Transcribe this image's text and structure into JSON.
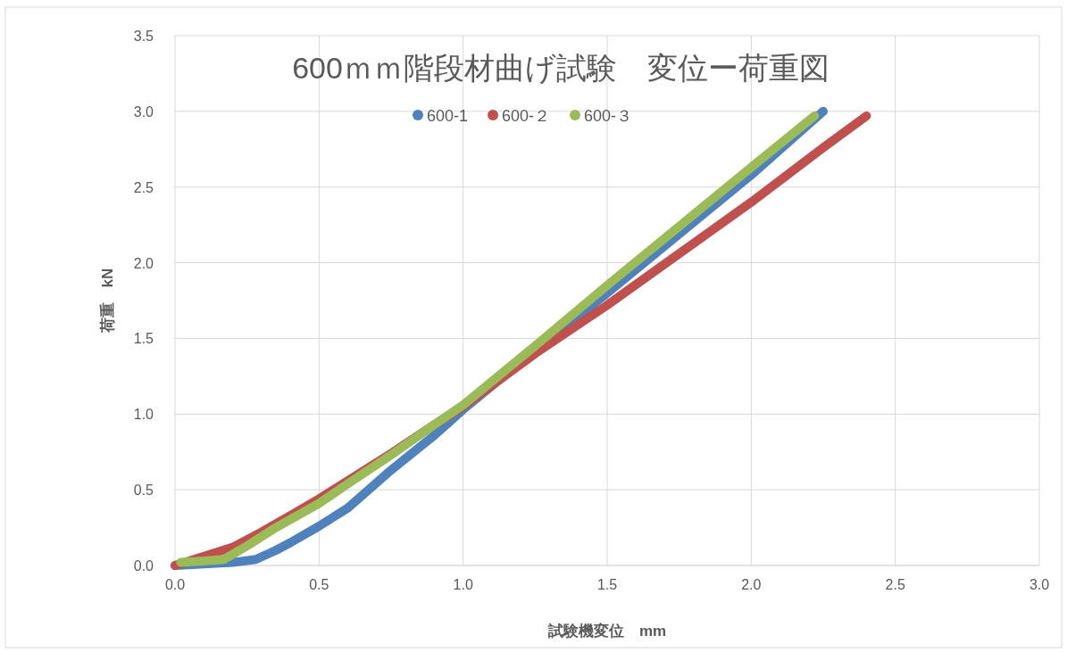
{
  "chart_data": {
    "type": "line",
    "title": "600ｍｍ階段材曲げ試験　変位ー荷重図",
    "xlabel": "試験機変位　mm",
    "ylabel": "荷重　kN",
    "xlim": [
      0,
      3
    ],
    "xticks": [
      {
        "value": 0,
        "label": "0.0"
      },
      {
        "value": 0.5,
        "label": "0.5"
      },
      {
        "value": 1,
        "label": "1.0"
      },
      {
        "value": 1.5,
        "label": "1.5"
      },
      {
        "value": 2,
        "label": "2.0"
      },
      {
        "value": 2.5,
        "label": "2.5"
      },
      {
        "value": 3,
        "label": "3.0"
      }
    ],
    "ylim": [
      0,
      3.5
    ],
    "yticks": [
      {
        "value": 0,
        "label": "0.0"
      },
      {
        "value": 0.5,
        "label": "0.5"
      },
      {
        "value": 1,
        "label": "1.0"
      },
      {
        "value": 1.5,
        "label": "1.5"
      },
      {
        "value": 2,
        "label": "2.0"
      },
      {
        "value": 2.5,
        "label": "2.5"
      },
      {
        "value": 3,
        "label": "3.0"
      },
      {
        "value": 3.5,
        "label": "3.5"
      }
    ],
    "grid": true,
    "legend": "top",
    "line_style": "solid",
    "series": [
      {
        "name": "600-1",
        "color": "#4f81bd",
        "x": [
          0,
          0.1,
          0.2,
          0.28,
          0.35,
          0.4,
          0.5,
          0.6,
          0.75,
          0.9,
          1.0,
          1.25,
          1.5,
          1.75,
          2.0,
          2.25
        ],
        "values": [
          0,
          0.01,
          0.02,
          0.04,
          0.1,
          0.15,
          0.26,
          0.38,
          0.63,
          0.86,
          1.03,
          1.42,
          1.8,
          2.19,
          2.58,
          3.0
        ]
      },
      {
        "name": "600-２",
        "color": "#c0504d",
        "x": [
          0,
          0.1,
          0.2,
          0.3,
          0.4,
          0.5,
          0.6,
          0.75,
          0.9,
          1.0,
          1.25,
          1.5,
          1.75,
          2.0,
          2.25,
          2.4
        ],
        "values": [
          0,
          0.06,
          0.12,
          0.22,
          0.33,
          0.44,
          0.56,
          0.74,
          0.93,
          1.05,
          1.4,
          1.72,
          2.06,
          2.4,
          2.76,
          2.97
        ]
      },
      {
        "name": "600-３",
        "color": "#9bbb59",
        "x": [
          0.02,
          0.1,
          0.17,
          0.25,
          0.35,
          0.5,
          0.6,
          0.75,
          0.9,
          1.0,
          1.25,
          1.5,
          1.75,
          2.0,
          2.22
        ],
        "values": [
          0.02,
          0.03,
          0.04,
          0.13,
          0.25,
          0.41,
          0.54,
          0.73,
          0.93,
          1.06,
          1.45,
          1.85,
          2.24,
          2.63,
          2.97
        ]
      }
    ]
  }
}
